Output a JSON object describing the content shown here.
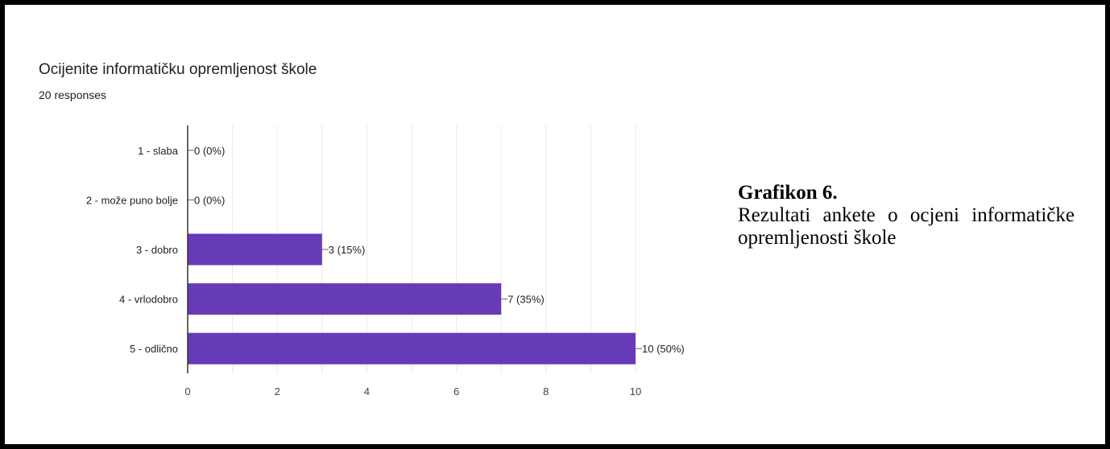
{
  "chart_data": {
    "type": "bar",
    "orientation": "horizontal",
    "title": "Ocijenite informatičku opremljenost škole",
    "subtitle": "20 responses",
    "categories": [
      "1 - slaba",
      "2 - može puno bolje",
      "3 - dobro",
      "4 - vrlodobro",
      "5 - odlično"
    ],
    "values": [
      0,
      0,
      3,
      7,
      10
    ],
    "data_labels": [
      "0 (0%)",
      "0 (0%)",
      "3 (15%)",
      "7 (35%)",
      "10 (50%)"
    ],
    "x_ticks": [
      0,
      2,
      4,
      6,
      8,
      10
    ],
    "xlim": [
      0,
      10
    ],
    "grid": true,
    "bar_color": "#673ab7"
  },
  "caption": {
    "title": "Grafikon 6.",
    "text": "Rezultati ankete o ocjeni informatičke opremljenosti škole"
  }
}
